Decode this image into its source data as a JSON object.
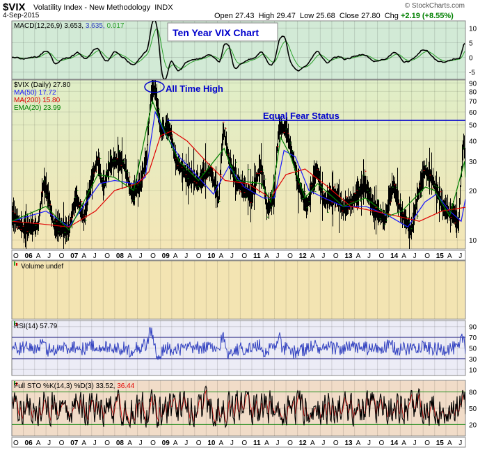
{
  "header": {
    "symbol": "$VIX",
    "name": "Volatility Index - New Methodology",
    "exchange": "INDX",
    "date": "4-Sep-2015",
    "brand": "© StockCharts.com",
    "open_label": "Open",
    "open": "27.43",
    "high_label": "High",
    "high": "29.47",
    "low_label": "Low",
    "low": "25.68",
    "close_label": "Close",
    "close": "27.80",
    "chg_label": "Chg",
    "chg": "+2.19 (+8.55%)"
  },
  "annotations": {
    "title_box": "Ten Year VIX Chart",
    "all_time_high": "All Time High",
    "equal_fear": "Equal Fear Status"
  },
  "legends": {
    "macd": {
      "label": "MACD(12,26,9)",
      "v1": "3.653,",
      "v2": "3.635,",
      "v3": "0.017"
    },
    "vix": {
      "label": "$VIX (Daily)",
      "value": "27.80"
    },
    "ma50": {
      "label": "MA(50)",
      "value": "17.72"
    },
    "ma200": {
      "label": "MA(200)",
      "value": "15.80"
    },
    "ema20": {
      "label": "EMA(20)",
      "value": "23.99"
    },
    "volume": "Volume undef",
    "rsi": {
      "label": "RSI(14)",
      "value": "57.79"
    },
    "sto": {
      "label": "Full STO %K(14,3) %D(3)",
      "k": "33.52,",
      "d": "36.44"
    }
  },
  "colors": {
    "macd_bg": "#d2ead6",
    "price_bg_top": "#dfeec7",
    "price_bg_bottom": "#f4e6b6",
    "volume_bg": "#f3e4b2",
    "rsi_bg": "#ececf6",
    "sto_bg": "#f1dcc8",
    "vix_bars": "#000000",
    "ma50": "#1a1aff",
    "ma200": "#e00000",
    "ema20": "#008000",
    "rsi_line": "#3040c0",
    "annotation_blue": "#0000cc"
  },
  "chart_data": {
    "type": "line",
    "title": "Ten Year VIX Chart",
    "x_ticks": [
      "O",
      "06",
      "A",
      "J",
      "O",
      "07",
      "A",
      "J",
      "O",
      "08",
      "A",
      "J",
      "O",
      "09",
      "A",
      "J",
      "O",
      "10",
      "A",
      "J",
      "O",
      "11",
      "A",
      "J",
      "O",
      "12",
      "A",
      "J",
      "O",
      "13",
      "A",
      "J",
      "O",
      "14",
      "A",
      "J",
      "O",
      "15",
      "A",
      "J"
    ],
    "price_axis": {
      "scale": "log",
      "ticks": [
        10,
        20,
        30,
        40,
        50,
        60,
        70,
        80,
        90
      ],
      "range": [
        9,
        92
      ]
    },
    "macd_axis": {
      "ticks": [
        -5,
        0,
        5,
        10
      ],
      "range": [
        -7,
        12
      ]
    },
    "rsi_axis": {
      "ticks": [
        10,
        30,
        50,
        70,
        90
      ],
      "range": [
        0,
        100
      ]
    },
    "sto_axis": {
      "ticks": [
        20,
        50,
        80
      ],
      "range": [
        0,
        100
      ]
    },
    "equal_fear_level": 53.3,
    "series": [
      {
        "name": "$VIX (Daily)",
        "x": [
          "2005-10-01",
          "2006-01-01",
          "2006-05-01",
          "2006-06-15",
          "2006-09-01",
          "2007-01-01",
          "2007-02-27",
          "2007-05-01",
          "2007-08-16",
          "2007-10-01",
          "2007-11-26",
          "2008-01-22",
          "2008-03-17",
          "2008-05-15",
          "2008-08-01",
          "2008-09-15",
          "2008-10-24",
          "2008-11-20",
          "2009-01-01",
          "2009-03-09",
          "2009-05-01",
          "2009-08-01",
          "2009-11-01",
          "2010-01-29",
          "2010-04-15",
          "2010-05-20",
          "2010-07-01",
          "2010-09-01",
          "2011-01-01",
          "2011-03-16",
          "2011-05-01",
          "2011-07-01",
          "2011-08-08",
          "2011-10-03",
          "2012-01-01",
          "2012-03-15",
          "2012-06-01",
          "2012-08-01",
          "2012-11-15",
          "2013-01-01",
          "2013-03-15",
          "2013-06-20",
          "2013-09-01",
          "2013-12-01",
          "2014-02-03",
          "2014-04-15",
          "2014-07-01",
          "2014-10-15",
          "2014-12-16",
          "2015-01-15",
          "2015-03-15",
          "2015-06-01",
          "2015-07-15",
          "2015-08-24",
          "2015-09-04"
        ],
        "values": [
          14,
          11.5,
          12,
          22,
          12,
          11,
          18,
          13,
          30,
          20,
          28,
          30,
          28,
          18,
          22,
          32,
          80,
          80,
          45,
          48,
          30,
          24,
          22,
          26,
          17,
          46,
          30,
          22,
          18,
          28,
          15,
          18,
          48,
          45,
          22,
          15,
          26,
          17,
          18,
          15,
          17,
          21,
          15,
          13,
          21,
          14,
          11,
          26,
          23,
          20,
          15,
          14,
          12,
          40,
          27.8
        ]
      },
      {
        "name": "MA(50)",
        "x": [
          "2005-10-01",
          "2006-07-01",
          "2007-01-01",
          "2007-09-01",
          "2008-01-01",
          "2008-06-01",
          "2008-09-01",
          "2008-11-20",
          "2009-02-01",
          "2009-06-01",
          "2009-11-01",
          "2010-03-01",
          "2010-07-01",
          "2010-11-01",
          "2011-04-01",
          "2011-07-01",
          "2011-09-15",
          "2011-12-15",
          "2012-04-01",
          "2012-08-01",
          "2013-01-01",
          "2013-07-01",
          "2014-01-01",
          "2014-06-01",
          "2014-10-15",
          "2015-01-15",
          "2015-05-01",
          "2015-08-01",
          "2015-09-04"
        ],
        "values": [
          13,
          15,
          12,
          22,
          23,
          22,
          24,
          60,
          45,
          32,
          24,
          19,
          28,
          21,
          18,
          18,
          35,
          32,
          20,
          18,
          16,
          16,
          14,
          12,
          17,
          19,
          15,
          13,
          17.72
        ]
      },
      {
        "name": "MA(200)",
        "x": [
          "2005-10-01",
          "2006-06-01",
          "2007-01-01",
          "2007-08-01",
          "2008-01-01",
          "2008-07-01",
          "2008-10-01",
          "2009-01-01",
          "2009-04-01",
          "2009-08-01",
          "2010-01-01",
          "2010-06-01",
          "2010-12-01",
          "2011-06-01",
          "2011-10-01",
          "2012-03-01",
          "2012-09-01",
          "2013-03-01",
          "2013-09-01",
          "2014-03-01",
          "2014-09-01",
          "2015-03-01",
          "2015-09-04"
        ],
        "values": [
          13,
          12.5,
          12,
          15,
          20,
          22,
          26,
          43,
          46,
          40,
          30,
          23,
          22,
          18,
          25,
          27,
          21,
          16,
          15,
          14,
          13,
          15,
          15.8
        ]
      },
      {
        "name": "EMA(20)",
        "x": [
          "2005-10-01",
          "2006-07-01",
          "2007-01-01",
          "2007-08-20",
          "2008-01-01",
          "2008-06-01",
          "2008-10-28",
          "2009-02-01",
          "2009-06-01",
          "2009-11-01",
          "2010-05-25",
          "2010-09-01",
          "2011-03-20",
          "2011-06-01",
          "2011-08-20",
          "2011-11-01",
          "2012-03-01",
          "2012-06-10",
          "2013-01-01",
          "2013-06-25",
          "2014-01-01",
          "2014-04-15",
          "2014-10-18",
          "2015-01-01",
          "2015-05-01",
          "2015-08-28",
          "2015-09-04"
        ],
        "values": [
          13,
          16,
          11.5,
          25,
          24,
          20,
          70,
          46,
          30,
          23,
          36,
          23,
          22,
          17,
          42,
          33,
          18,
          22,
          16,
          18,
          14,
          15,
          21,
          20,
          14,
          30,
          23.99
        ]
      }
    ]
  }
}
